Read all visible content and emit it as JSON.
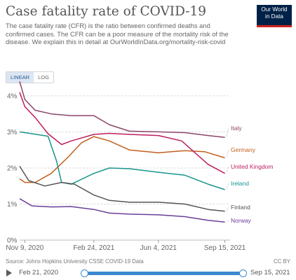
{
  "header": {
    "title": "Case fatality rate of COVID-19",
    "subtitle": "The case fatality rate (CFR) is the ratio between confirmed deaths and confirmed cases. The CFR can be a poor measure of the mortality risk of the disease. We explain this in detail at OurWorldInData.org/mortality-risk-covid",
    "logo_line1": "Our World",
    "logo_line2": "in Data",
    "logo_colors": {
      "background": "#002147",
      "accent": "#ce261e"
    }
  },
  "controls": {
    "linear_label": "LINEAR",
    "log_label": "LOG",
    "active": "LINEAR"
  },
  "chart_data": {
    "type": "line",
    "x_range": [
      "2020-11-01",
      "2021-09-23"
    ],
    "ylim": [
      0,
      4.6
    ],
    "grid": true,
    "y_ticks": [
      {
        "value": 0,
        "label": "0%"
      },
      {
        "value": 1,
        "label": "1%"
      },
      {
        "value": 2,
        "label": "2%"
      },
      {
        "value": 3,
        "label": "3%"
      },
      {
        "value": 4,
        "label": "4%"
      }
    ],
    "x_ticks": [
      {
        "date": "2020-11-09",
        "label": "Nov 9, 2020"
      },
      {
        "date": "2021-02-24",
        "label": "Feb 24, 2021"
      },
      {
        "date": "2021-06-04",
        "label": "Jun 4, 2021"
      },
      {
        "date": "2021-09-15",
        "label": "Sep 15, 2021"
      }
    ],
    "legend_placement": "right (line-end labels)",
    "series": [
      {
        "name": "Italy",
        "color": "#8c4569",
        "points": [
          [
            "2020-11-01",
            4.4
          ],
          [
            "2020-11-09",
            3.9
          ],
          [
            "2020-11-25",
            3.6
          ],
          [
            "2020-12-20",
            3.5
          ],
          [
            "2021-01-20",
            3.45
          ],
          [
            "2021-02-24",
            3.45
          ],
          [
            "2021-03-20",
            3.2
          ],
          [
            "2021-04-20",
            3.02
          ],
          [
            "2021-06-04",
            3.0
          ],
          [
            "2021-07-15",
            2.98
          ],
          [
            "2021-08-20",
            2.9
          ],
          [
            "2021-09-15",
            2.85
          ]
        ]
      },
      {
        "name": "Germany",
        "color": "#c15f1e",
        "points": [
          [
            "2020-11-01",
            1.7
          ],
          [
            "2020-11-09",
            1.6
          ],
          [
            "2020-11-25",
            1.6
          ],
          [
            "2020-12-20",
            1.85
          ],
          [
            "2021-01-15",
            2.3
          ],
          [
            "2021-02-05",
            2.7
          ],
          [
            "2021-02-24",
            2.87
          ],
          [
            "2021-03-20",
            2.75
          ],
          [
            "2021-04-20",
            2.5
          ],
          [
            "2021-06-04",
            2.42
          ],
          [
            "2021-07-15",
            2.48
          ],
          [
            "2021-08-15",
            2.45
          ],
          [
            "2021-09-15",
            2.28
          ]
        ]
      },
      {
        "name": "United Kingdom",
        "color": "#be1f5f",
        "points": [
          [
            "2020-11-01",
            4.1
          ],
          [
            "2020-11-09",
            3.7
          ],
          [
            "2020-11-25",
            3.4
          ],
          [
            "2020-12-15",
            2.95
          ],
          [
            "2021-01-05",
            2.65
          ],
          [
            "2021-01-20",
            2.75
          ],
          [
            "2021-02-24",
            2.93
          ],
          [
            "2021-03-20",
            2.96
          ],
          [
            "2021-04-20",
            2.93
          ],
          [
            "2021-06-04",
            2.9
          ],
          [
            "2021-07-10",
            2.75
          ],
          [
            "2021-08-01",
            2.4
          ],
          [
            "2021-08-20",
            2.1
          ],
          [
            "2021-09-15",
            1.85
          ]
        ]
      },
      {
        "name": "Ireland",
        "color": "#18958e",
        "points": [
          [
            "2020-11-01",
            3.0
          ],
          [
            "2020-11-20",
            2.95
          ],
          [
            "2020-12-15",
            2.88
          ],
          [
            "2020-12-28",
            2.2
          ],
          [
            "2021-01-05",
            1.6
          ],
          [
            "2021-01-20",
            1.55
          ],
          [
            "2021-02-24",
            1.85
          ],
          [
            "2021-03-20",
            2.0
          ],
          [
            "2021-04-20",
            1.98
          ],
          [
            "2021-06-04",
            1.88
          ],
          [
            "2021-07-15",
            1.8
          ],
          [
            "2021-08-20",
            1.55
          ],
          [
            "2021-09-15",
            1.4
          ]
        ]
      },
      {
        "name": "Finland",
        "color": "#555555",
        "points": [
          [
            "2020-11-01",
            2.05
          ],
          [
            "2020-11-15",
            1.65
          ],
          [
            "2020-12-10",
            1.5
          ],
          [
            "2021-01-05",
            1.6
          ],
          [
            "2021-01-25",
            1.55
          ],
          [
            "2021-02-24",
            1.25
          ],
          [
            "2021-03-20",
            1.1
          ],
          [
            "2021-04-20",
            1.05
          ],
          [
            "2021-06-04",
            1.05
          ],
          [
            "2021-07-15",
            1.0
          ],
          [
            "2021-08-20",
            0.85
          ],
          [
            "2021-09-15",
            0.8
          ]
        ]
      },
      {
        "name": "Norway",
        "color": "#6b3d9a",
        "points": [
          [
            "2020-11-01",
            1.15
          ],
          [
            "2020-11-20",
            0.95
          ],
          [
            "2020-12-20",
            0.92
          ],
          [
            "2021-01-20",
            0.93
          ],
          [
            "2021-02-24",
            0.85
          ],
          [
            "2021-03-20",
            0.75
          ],
          [
            "2021-04-20",
            0.72
          ],
          [
            "2021-06-04",
            0.7
          ],
          [
            "2021-07-15",
            0.65
          ],
          [
            "2021-08-20",
            0.55
          ],
          [
            "2021-09-15",
            0.5
          ]
        ]
      }
    ]
  },
  "footer": {
    "source": "Source: Johns Hopkins University CSSE COVID-19 Data",
    "license": "CC BY"
  },
  "timeline": {
    "start_label": "Feb 21, 2020",
    "end_label": "Sep 15, 2021",
    "selection_start": 0.0,
    "selection_end": 1.0,
    "accent_color": "#3c89d0"
  }
}
